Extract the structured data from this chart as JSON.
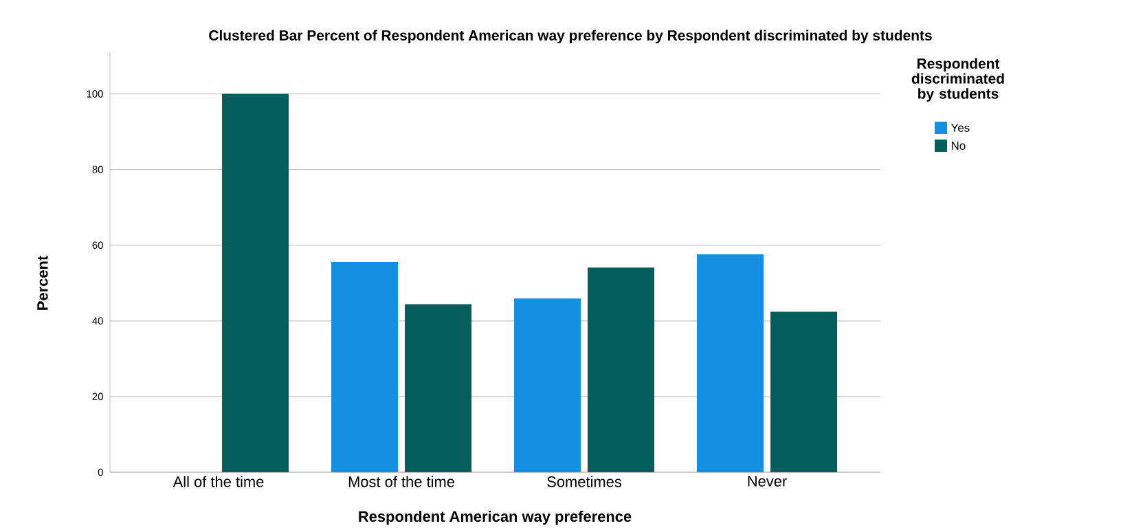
{
  "chart_data": {
    "type": "bar",
    "title": "Clustered Bar Percent of Respondent American way preference by Respondent discriminated by students",
    "xlabel": "Respondent American way preference",
    "ylabel": "Percent",
    "legend_title": "Respondent discriminated by students",
    "categories": [
      "All of the time",
      "Most of the time",
      "Sometimes",
      "Never"
    ],
    "series": [
      {
        "name": "Yes",
        "color": "#1490e2",
        "values": [
          null,
          55.6,
          45.9,
          57.6
        ]
      },
      {
        "name": "No",
        "color": "#045f5c",
        "values": [
          100,
          44.4,
          54.1,
          42.4
        ]
      }
    ],
    "ylim": [
      0,
      111
    ],
    "yticks": [
      0,
      20,
      40,
      60,
      80,
      100
    ],
    "grid": "y",
    "legend": "top right"
  }
}
